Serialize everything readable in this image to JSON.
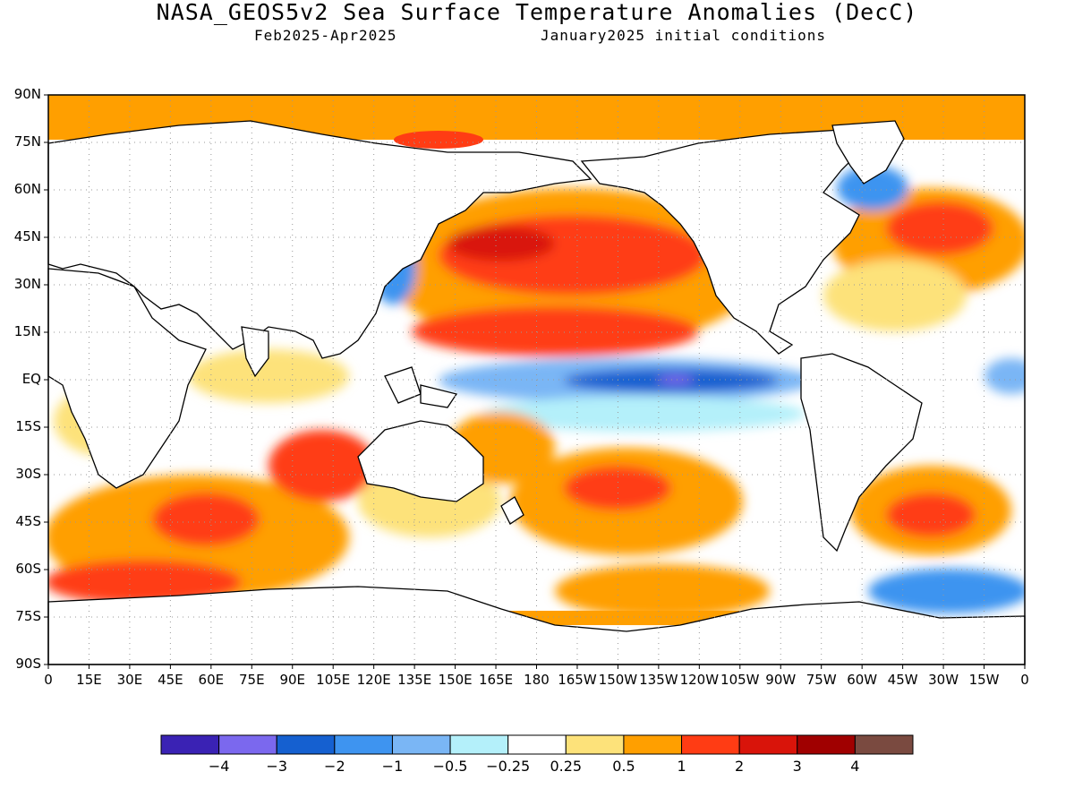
{
  "title": "NASA_GEOS5v2 Sea Surface Temperature Anomalies (DecC)",
  "subtitle_left": "Feb2025-Apr2025",
  "subtitle_right": "January2025 initial conditions",
  "lat_labels": [
    "90N",
    "75N",
    "60N",
    "45N",
    "30N",
    "15N",
    "EQ",
    "15S",
    "30S",
    "45S",
    "60S",
    "75S",
    "90S"
  ],
  "lon_labels": [
    "0",
    "15E",
    "30E",
    "45E",
    "60E",
    "75E",
    "90E",
    "105E",
    "120E",
    "135E",
    "150E",
    "165E",
    "180",
    "165W",
    "150W",
    "135W",
    "120W",
    "105W",
    "90W",
    "75W",
    "60W",
    "45W",
    "30W",
    "15W",
    "0"
  ],
  "colorbar": {
    "colors": [
      "#3a22b4",
      "#7b68ee",
      "#1560d0",
      "#3e94f0",
      "#7ab6f5",
      "#b4f0fa",
      "#ffffff",
      "#fde27a",
      "#ff9f00",
      "#ff3c14",
      "#d9140a",
      "#a00000",
      "#7a4a40"
    ],
    "labels": [
      "-4",
      "-3",
      "-2",
      "-1",
      "-0.5",
      "-0.25",
      "0.25",
      "0.5",
      "1",
      "2",
      "3",
      "4"
    ]
  }
}
